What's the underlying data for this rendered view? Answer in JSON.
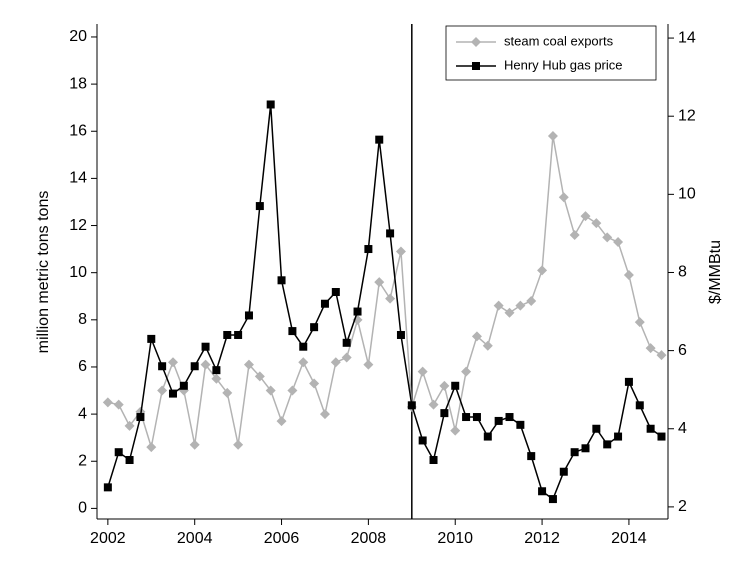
{
  "chart_data": {
    "type": "line",
    "x": [
      2002,
      2002.25,
      2002.5,
      2002.75,
      2003,
      2003.25,
      2003.5,
      2003.75,
      2004,
      2004.25,
      2004.5,
      2004.75,
      2005,
      2005.25,
      2005.5,
      2005.75,
      2006,
      2006.25,
      2006.5,
      2006.75,
      2007,
      2007.25,
      2007.5,
      2007.75,
      2008,
      2008.25,
      2008.5,
      2008.75,
      2009,
      2009.25,
      2009.5,
      2009.75,
      2010,
      2010.25,
      2010.5,
      2010.75,
      2011,
      2011.25,
      2011.5,
      2011.75,
      2012,
      2012.25,
      2012.5,
      2012.75,
      2013,
      2013.25,
      2013.5,
      2013.75,
      2014,
      2014.25,
      2014.5,
      2014.75
    ],
    "series": [
      {
        "name": "steam coal exports",
        "color": "#b3b3b3",
        "marker": "diamond",
        "axis": "y",
        "values": [
          4.5,
          4.4,
          3.5,
          4.1,
          2.6,
          5.0,
          6.2,
          5.0,
          2.7,
          6.1,
          5.5,
          4.9,
          2.7,
          6.1,
          5.6,
          5.0,
          3.7,
          5.0,
          6.2,
          5.3,
          4.0,
          6.2,
          6.4,
          8.0,
          6.1,
          9.6,
          8.9,
          10.9,
          4.3,
          5.8,
          4.4,
          5.2,
          3.3,
          5.8,
          7.3,
          6.9,
          8.6,
          8.3,
          8.6,
          8.8,
          10.1,
          15.8,
          13.2,
          11.6,
          12.4,
          12.1,
          11.5,
          11.3,
          9.9,
          7.9,
          6.8,
          6.5
        ]
      },
      {
        "name": "Henry Hub gas price",
        "color": "#000000",
        "marker": "square",
        "axis": "y2",
        "values": [
          2.5,
          3.4,
          3.2,
          4.3,
          6.3,
          5.6,
          4.9,
          5.1,
          5.6,
          6.1,
          5.5,
          6.4,
          6.4,
          6.9,
          9.7,
          12.3,
          7.8,
          6.5,
          6.1,
          6.6,
          7.2,
          7.5,
          6.2,
          7.0,
          8.6,
          11.4,
          9.0,
          6.4,
          4.6,
          3.7,
          3.2,
          4.4,
          5.1,
          4.3,
          4.3,
          3.8,
          4.2,
          4.3,
          4.1,
          3.3,
          2.4,
          2.2,
          2.9,
          3.4,
          3.5,
          4.0,
          3.6,
          3.8,
          5.2,
          4.6,
          4.0,
          3.8
        ]
      }
    ],
    "y_label": "million metric tons tons",
    "y2_label": "$/MMBtu",
    "xlim": [
      2001.75,
      2014.9
    ],
    "xticks": [
      2002,
      2004,
      2006,
      2008,
      2010,
      2012,
      2014
    ],
    "ylim": [
      -0.45,
      20.55
    ],
    "yticks": [
      0,
      2,
      4,
      6,
      8,
      10,
      12,
      14,
      16,
      18,
      20
    ],
    "y2lim": [
      1.69,
      14.36
    ],
    "y2ticks": [
      2,
      4,
      6,
      8,
      10,
      12,
      14
    ],
    "vline": 2009,
    "legend": "top-right"
  }
}
